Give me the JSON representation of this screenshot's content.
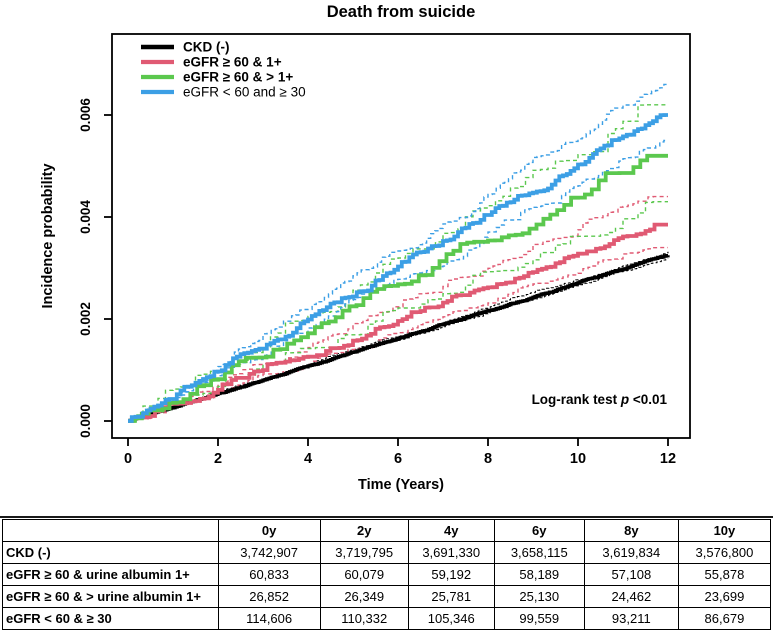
{
  "chart_data": {
    "type": "line",
    "title": "Death from suicide",
    "xlabel": "Time (Years)",
    "ylabel": "Incidence probability",
    "x_ticks": [
      0,
      2,
      4,
      6,
      8,
      10,
      12
    ],
    "y_tick_labels": [
      "0.000",
      "0.002",
      "0.004",
      "0.006"
    ],
    "y_tick_values": [
      0.0,
      0.002,
      0.004,
      0.006
    ],
    "xlim": [
      0,
      12.5
    ],
    "ylim": [
      -0.0003,
      0.0076
    ],
    "grid": false,
    "legend_position": "top-left-inside",
    "annotation": {
      "prefix": "Log-rank test ",
      "p": "p",
      "suffix": " <0.01"
    },
    "ci_style": "dashed",
    "series": [
      {
        "name": "CKD (-)",
        "color": "#000000",
        "legend_bold": true,
        "x": [
          0,
          2,
          4,
          6,
          8,
          10,
          12
        ],
        "values": [
          0,
          0.00054,
          0.00108,
          0.00162,
          0.00217,
          0.00271,
          0.00325
        ],
        "final_value": 0.00325,
        "ci_upper_final": 0.00332,
        "ci_lower_final": 0.00318
      },
      {
        "name": "eGFR ≥ 60 & 1+",
        "color": "#E05A73",
        "legend_bold": true,
        "x": [
          0,
          2,
          4,
          6,
          8,
          10,
          12
        ],
        "values": [
          0,
          0.00061,
          0.00126,
          0.00196,
          0.00262,
          0.00328,
          0.00385
        ],
        "final_value": 0.00385,
        "ci_upper_final": 0.0044,
        "ci_lower_final": 0.0034
      },
      {
        "name": "eGFR ≥ 60 & > 1+",
        "color": "#5BC84E",
        "legend_bold": true,
        "x": [
          0,
          2,
          4,
          6,
          8,
          10,
          12
        ],
        "values": [
          0,
          0.00082,
          0.00172,
          0.00268,
          0.00354,
          0.00438,
          0.0052
        ],
        "final_value": 0.0052,
        "ci_upper_final": 0.0062,
        "ci_lower_final": 0.0043
      },
      {
        "name": "eGFR < 60 and ≥ 30",
        "color": "#3C9FE5",
        "legend_bold": false,
        "x": [
          0,
          2,
          4,
          6,
          8,
          10,
          12
        ],
        "values": [
          0,
          0.00097,
          0.00199,
          0.00303,
          0.00404,
          0.00503,
          0.006
        ],
        "final_value": 0.006,
        "ci_upper_final": 0.0066,
        "ci_lower_final": 0.0055
      }
    ]
  },
  "table": {
    "headers": [
      "",
      "0y",
      "2y",
      "4y",
      "6y",
      "8y",
      "10y"
    ],
    "rows": [
      {
        "label": "CKD (-)",
        "values": [
          "3,742,907",
          "3,719,795",
          "3,691,330",
          "3,658,115",
          "3,619,834",
          "3,576,800"
        ]
      },
      {
        "label": "eGFR ≥ 60 & urine albumin 1+",
        "values": [
          "60,833",
          "60,079",
          "59,192",
          "58,189",
          "57,108",
          "55,878"
        ]
      },
      {
        "label": "eGFR ≥ 60 & > urine albumin 1+",
        "values": [
          "26,852",
          "26,349",
          "25,781",
          "25,130",
          "24,462",
          "23,699"
        ]
      },
      {
        "label": "eGFR < 60 & ≥ 30",
        "values": [
          "114,606",
          "110,332",
          "105,346",
          "99,559",
          "93,211",
          "86,679"
        ]
      }
    ]
  }
}
